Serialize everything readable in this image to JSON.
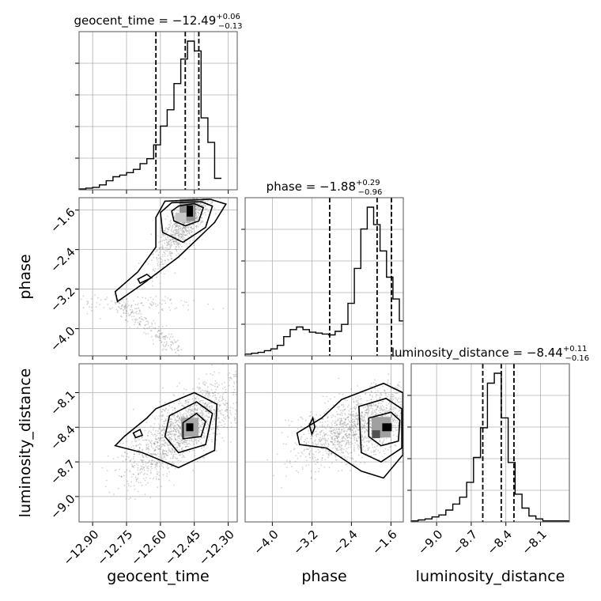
{
  "chart_data": {
    "type": "corner",
    "parameters": [
      "geocent_time",
      "phase",
      "luminosity_distance"
    ],
    "titles": [
      {
        "param": "geocent_time",
        "prefix": "geocent_time = ",
        "median": "−12.49",
        "upper": "+0.06",
        "lower": "−0.13"
      },
      {
        "param": "phase",
        "prefix": "phase = ",
        "median": "−1.88",
        "upper": "+0.29",
        "lower": "−0.96"
      },
      {
        "param": "luminosity_distance",
        "prefix": "luminosity_distance = ",
        "median": "−8.44",
        "upper": "+0.11",
        "lower": "−0.16"
      }
    ],
    "axis_labels": {
      "x": [
        "geocent_time",
        "phase",
        "luminosity_distance"
      ],
      "y": [
        "phase",
        "luminosity_distance"
      ]
    },
    "ranges": {
      "geocent_time": [
        -12.96,
        -12.26
      ],
      "phase": [
        -4.55,
        -1.35
      ],
      "luminosity_distance": [
        -9.22,
        -7.85
      ]
    },
    "tick_labels": {
      "geocent_time": [
        "−12.90",
        "−12.75",
        "−12.60",
        "−12.45",
        "−12.30"
      ],
      "phase": [
        "−4.0",
        "−3.2",
        "−2.4",
        "−1.6"
      ],
      "luminosity_distance": [
        "−9.0",
        "−8.7",
        "−8.4",
        "−8.1"
      ]
    },
    "tick_values": {
      "geocent_time": [
        -12.9,
        -12.75,
        -12.6,
        -12.45,
        -12.3
      ],
      "phase": [
        -4.0,
        -3.2,
        -2.4,
        -1.6
      ],
      "luminosity_distance": [
        -9.0,
        -8.7,
        -8.4,
        -8.1
      ]
    },
    "quantile_lines": {
      "geocent_time": [
        -12.62,
        -12.49,
        -12.43
      ],
      "phase": [
        -2.84,
        -1.88,
        -1.59
      ],
      "luminosity_distance": [
        -8.6,
        -8.44,
        -8.33
      ]
    },
    "histograms": {
      "geocent_time": {
        "edges": [
          -12.96,
          -12.93,
          -12.9,
          -12.87,
          -12.84,
          -12.81,
          -12.78,
          -12.75,
          -12.72,
          -12.69,
          -12.66,
          -12.63,
          -12.6,
          -12.57,
          -12.54,
          -12.51,
          -12.48,
          -12.45,
          -12.42,
          -12.39,
          -12.36,
          -12.33
        ],
        "counts": [
          1,
          2,
          3,
          6,
          11,
          16,
          18,
          21,
          25,
          32,
          38,
          55,
          78,
          98,
          130,
          160,
          182,
          170,
          88,
          58,
          14
        ]
      },
      "phase": {
        "edges": [
          -4.55,
          -4.42,
          -4.29,
          -4.16,
          -4.03,
          -3.9,
          -3.77,
          -3.64,
          -3.51,
          -3.38,
          -3.25,
          -3.12,
          -2.99,
          -2.86,
          -2.73,
          -2.6,
          -2.47,
          -2.34,
          -2.21,
          -2.08,
          -1.95,
          -1.82,
          -1.69,
          -1.56,
          -1.43,
          -1.35
        ],
        "counts": [
          2,
          3,
          4,
          6,
          8,
          12,
          22,
          30,
          33,
          30,
          27,
          26,
          25,
          24,
          28,
          36,
          60,
          100,
          145,
          170,
          150,
          120,
          90,
          65,
          40
        ]
      },
      "luminosity_distance": {
        "edges": [
          -9.22,
          -9.16,
          -9.1,
          -9.04,
          -8.98,
          -8.92,
          -8.86,
          -8.8,
          -8.74,
          -8.68,
          -8.62,
          -8.56,
          -8.5,
          -8.44,
          -8.38,
          -8.32,
          -8.26,
          -8.2,
          -8.14,
          -8.08,
          -7.85
        ],
        "counts": [
          1,
          2,
          3,
          5,
          7,
          12,
          18,
          25,
          40,
          65,
          95,
          140,
          150,
          105,
          60,
          28,
          14,
          6,
          3,
          1
        ]
      }
    },
    "grid": true,
    "colors": {
      "lines": "#000000",
      "grid": "#b0b0b0",
      "scatter": "#808080"
    }
  }
}
